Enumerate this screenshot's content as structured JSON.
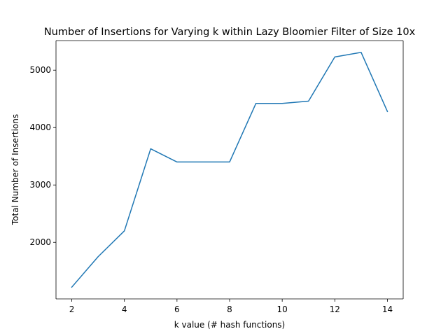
{
  "chart_data": {
    "type": "line",
    "title": "Number of Insertions for Varying k within Lazy Bloomier Filter of Size 10x",
    "xlabel": "k value (# hash functions)",
    "ylabel": "Total Number of Insertions",
    "x": [
      2,
      3,
      4,
      5,
      6,
      7,
      8,
      9,
      10,
      11,
      12,
      13,
      14
    ],
    "series": [
      {
        "values": [
          1220,
          1750,
          2200,
          3630,
          3400,
          3400,
          3400,
          4420,
          4420,
          4460,
          5230,
          5310,
          4280
        ],
        "color": "#1f77b4"
      }
    ],
    "xlim": [
      1.4,
      14.6
    ],
    "ylim": [
      1015,
      5515
    ],
    "xticks": [
      2,
      4,
      6,
      8,
      10,
      12,
      14
    ],
    "yticks": [
      2000,
      3000,
      4000,
      5000
    ],
    "grid": false,
    "legend": false
  }
}
